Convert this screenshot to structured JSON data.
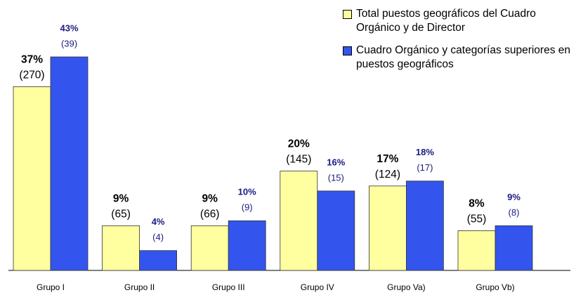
{
  "chart_data": {
    "type": "bar",
    "categories": [
      "Grupo I",
      "Grupo II",
      "Grupo III",
      "Grupo IV",
      "Grupo Va)",
      "Grupo Vb)"
    ],
    "series": [
      {
        "name": "Total puestos geográficos del Cuadro Orgánico y de Director",
        "color": "#ffffa0",
        "values": [
          37,
          9,
          9,
          20,
          17,
          8
        ],
        "value_labels": [
          "37%",
          "9%",
          "9%",
          "20%",
          "17%",
          "8%"
        ],
        "count_labels": [
          "(270)",
          "(65)",
          "(66)",
          "(145)",
          "(124)",
          "(55)"
        ]
      },
      {
        "name": "Cuadro Orgánico y categorías superiores en puestos geográficos",
        "color": "#3355ee",
        "values": [
          43,
          4,
          10,
          16,
          18,
          9
        ],
        "value_labels": [
          "43%",
          "4%",
          "10%",
          "16%",
          "18%",
          "9%"
        ],
        "count_labels": [
          "(39)",
          "(4)",
          "(9)",
          "(15)",
          "(17)",
          "(8)"
        ]
      }
    ],
    "legend": "top-right"
  }
}
